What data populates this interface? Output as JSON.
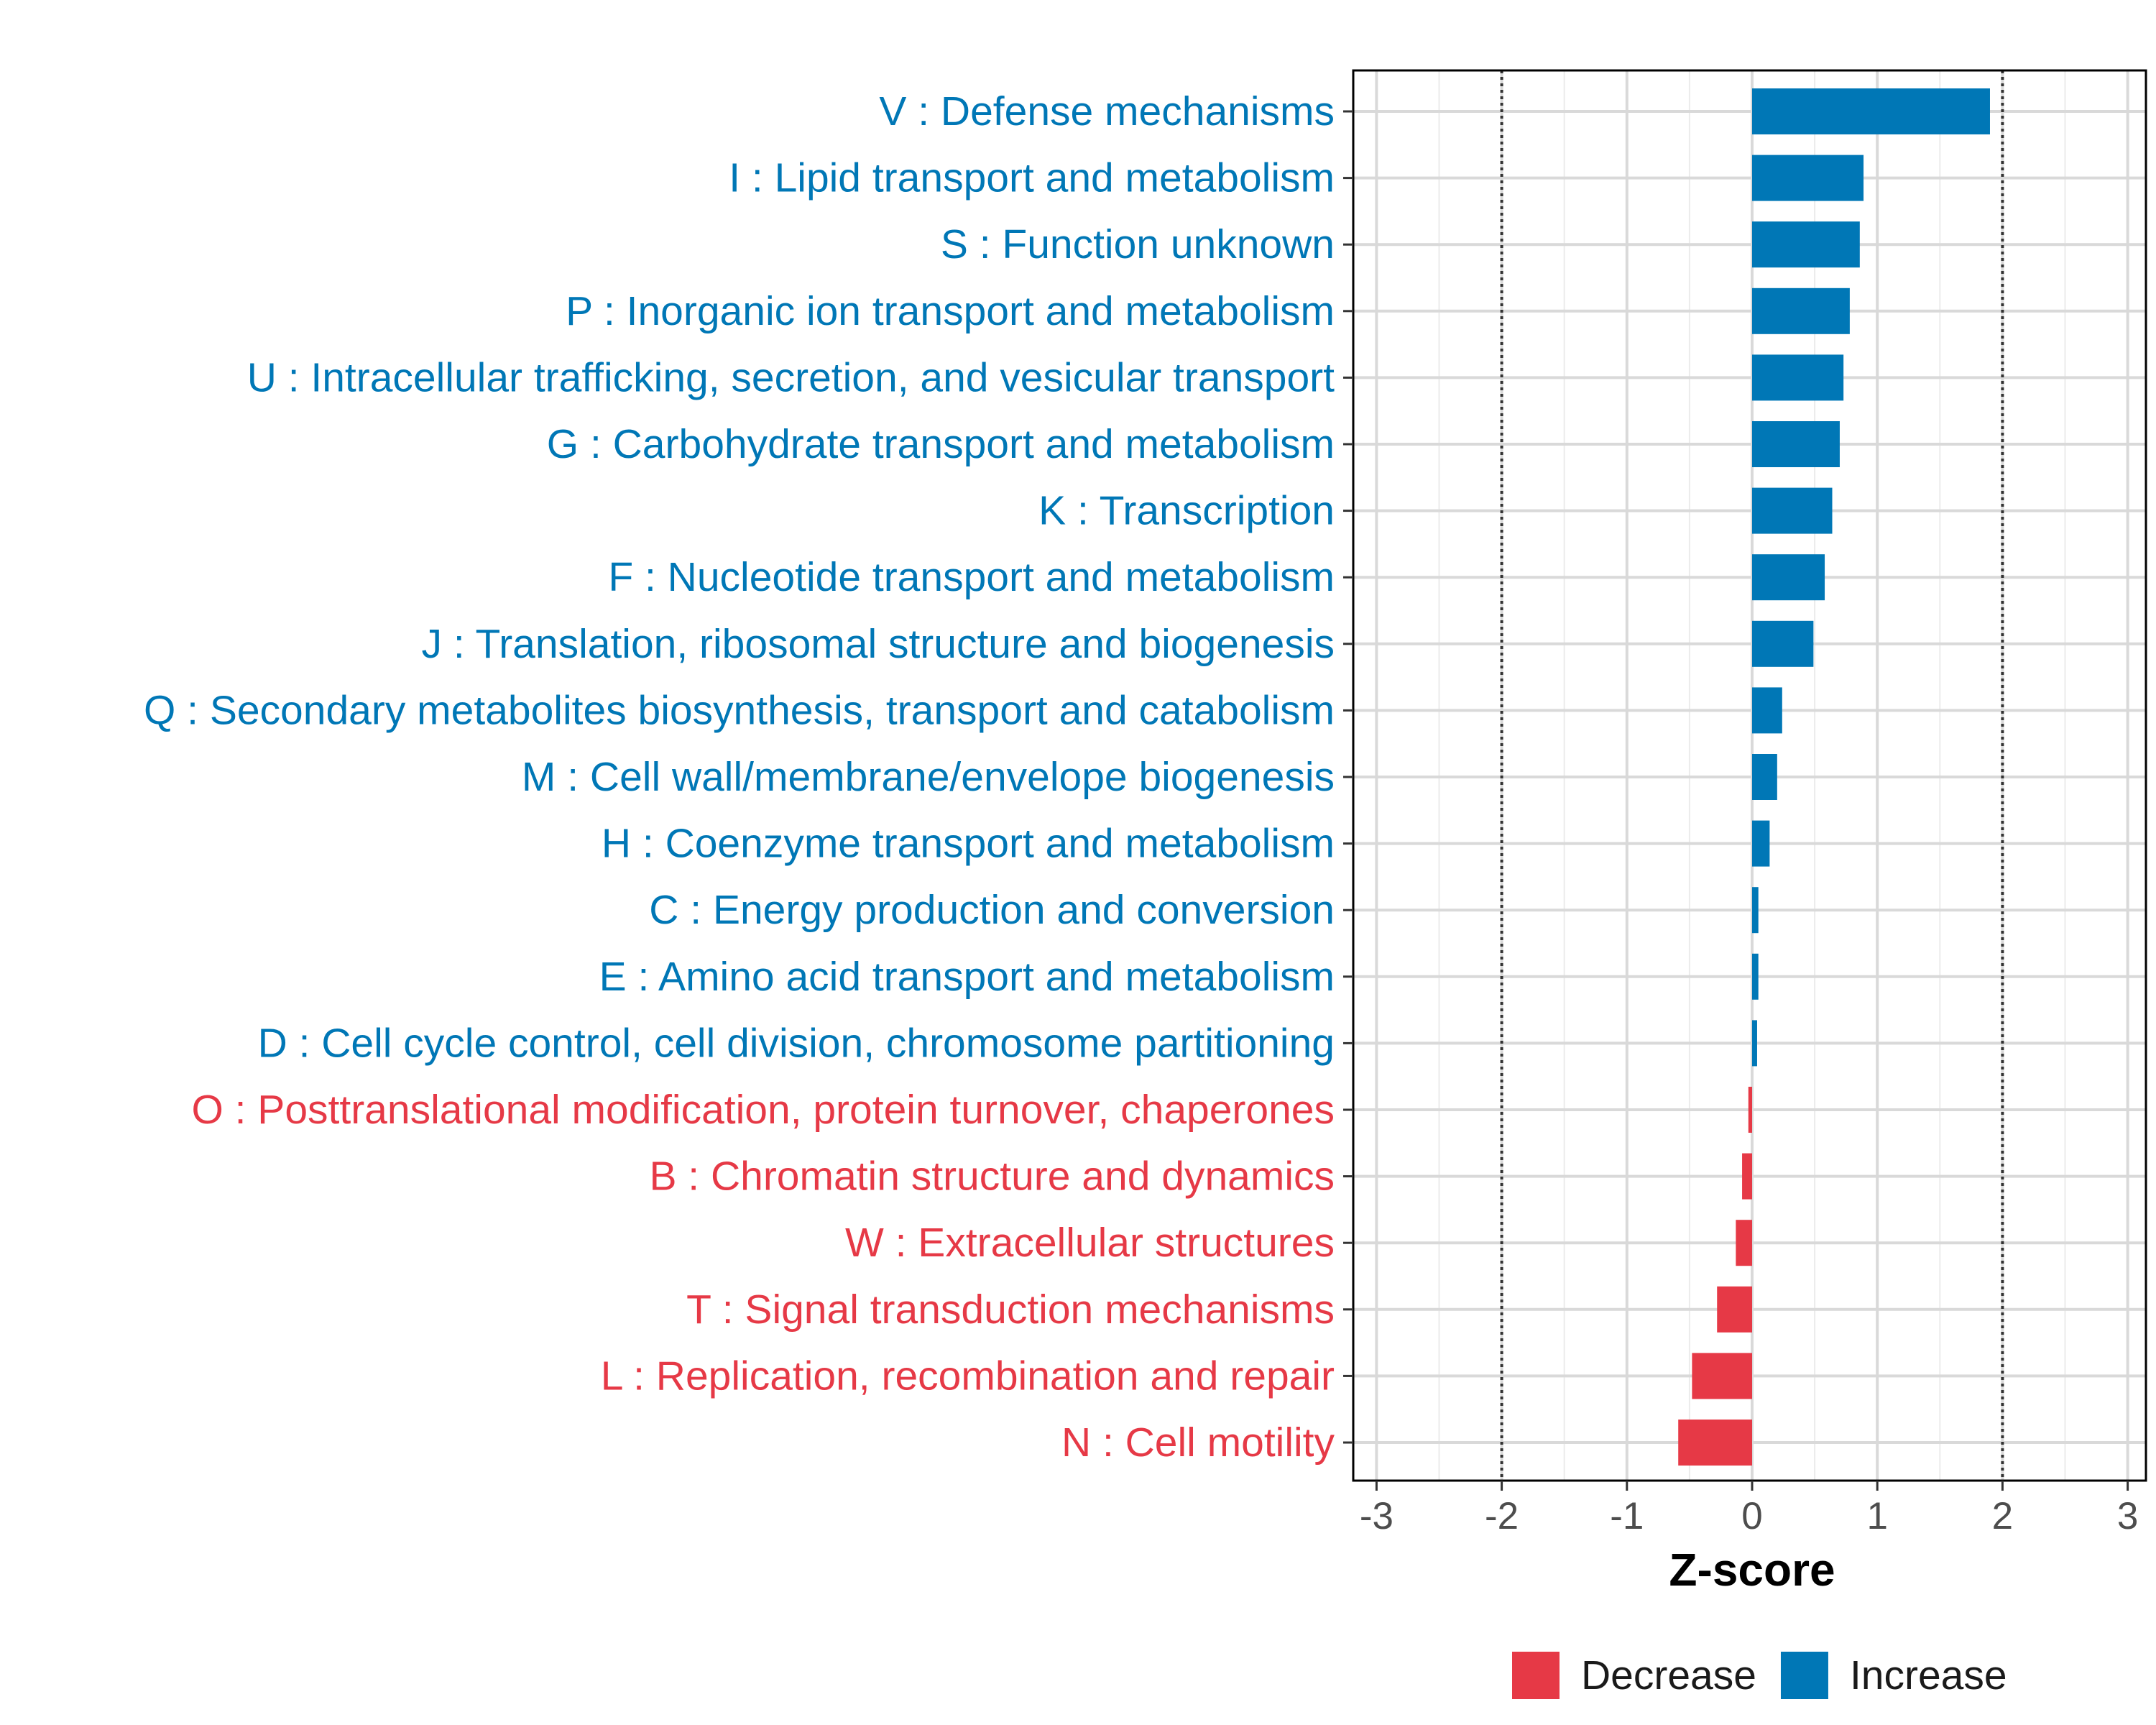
{
  "chart_data": {
    "type": "bar",
    "orientation": "horizontal",
    "categories": [
      "V : Defense mechanisms",
      "I : Lipid transport and metabolism",
      "S : Function unknown",
      "P : Inorganic ion transport and metabolism",
      "U : Intracellular trafficking, secretion, and vesicular transport",
      "G : Carbohydrate transport and metabolism",
      "K : Transcription",
      "F : Nucleotide transport and metabolism",
      "J : Translation, ribosomal structure and biogenesis",
      "Q : Secondary metabolites biosynthesis, transport and catabolism",
      "M : Cell wall/membrane/envelope biogenesis",
      "H : Coenzyme transport and metabolism",
      "C : Energy production and conversion",
      "E : Amino acid transport and metabolism",
      "D : Cell cycle control, cell division, chromosome partitioning",
      "O : Posttranslational modification, protein turnover, chaperones",
      "B : Chromatin structure and dynamics",
      "W : Extracellular structures",
      "T : Signal transduction mechanisms",
      "L : Replication, recombination and repair",
      "N : Cell motility"
    ],
    "values": [
      1.9,
      0.89,
      0.86,
      0.78,
      0.73,
      0.7,
      0.64,
      0.58,
      0.49,
      0.24,
      0.2,
      0.14,
      0.05,
      0.05,
      0.04,
      -0.03,
      -0.08,
      -0.13,
      -0.28,
      -0.48,
      -0.59
    ],
    "groups": [
      "Increase",
      "Increase",
      "Increase",
      "Increase",
      "Increase",
      "Increase",
      "Increase",
      "Increase",
      "Increase",
      "Increase",
      "Increase",
      "Increase",
      "Increase",
      "Increase",
      "Increase",
      "Decrease",
      "Decrease",
      "Decrease",
      "Decrease",
      "Decrease",
      "Decrease"
    ],
    "xlabel": "Z-score",
    "ylabel": "",
    "xlim": [
      -3,
      3
    ],
    "xticks": [
      "-3",
      "-2",
      "-1",
      "0",
      "1",
      "2",
      "3"
    ],
    "reference_lines": [
      -2,
      2
    ],
    "grid": true,
    "legend": {
      "position": "bottom",
      "entries": [
        {
          "name": "Decrease",
          "color": "#E63946"
        },
        {
          "name": "Increase",
          "color": "#0077B6"
        }
      ]
    },
    "colors": {
      "Increase": "#0077B6",
      "Decrease": "#E63946"
    }
  }
}
